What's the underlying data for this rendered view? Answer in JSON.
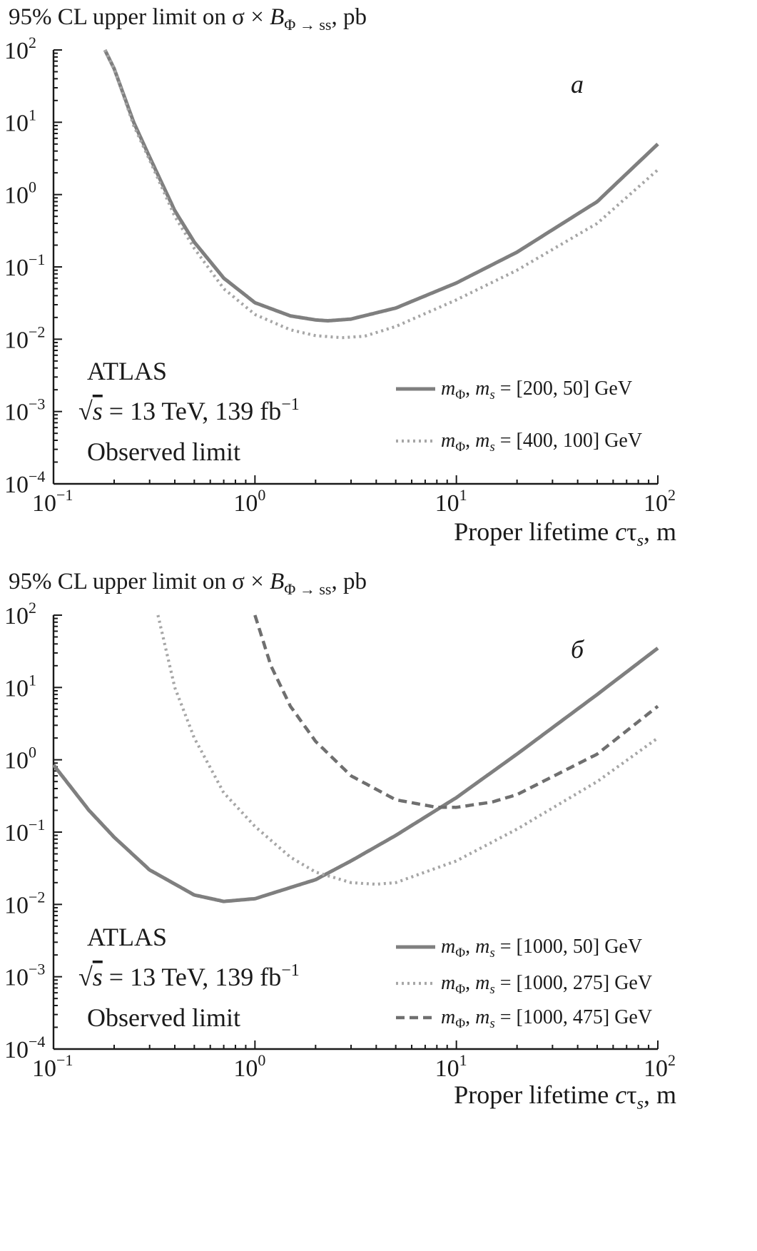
{
  "chart_data": [
    {
      "type": "line",
      "panel_label": "a",
      "title": "95% CL upper limit on σ × BΦ → ss, pb",
      "title_parts": {
        "pre": "95% CL upper limit on σ × ",
        "B": "B",
        "sub": "Φ → ss",
        "post": ", pb"
      },
      "xlabel": "Proper lifetime cτs, m",
      "xlabel_parts": {
        "pre": "Proper lifetime ",
        "c": "c",
        "tau": "τ",
        "sub": "s",
        "post": ", m"
      },
      "xscale": "log",
      "yscale": "log",
      "xlim": [
        0.1,
        100
      ],
      "ylim": [
        0.0001,
        100
      ],
      "x_ticks": [
        {
          "base": "10",
          "exp": "−1"
        },
        {
          "base": "10",
          "exp": "0"
        },
        {
          "base": "10",
          "exp": "1"
        },
        {
          "base": "10",
          "exp": "2"
        }
      ],
      "y_ticks": [
        {
          "base": "10",
          "exp": "−4"
        },
        {
          "base": "10",
          "exp": "−3"
        },
        {
          "base": "10",
          "exp": "−2"
        },
        {
          "base": "10",
          "exp": "−1"
        },
        {
          "base": "10",
          "exp": "0"
        },
        {
          "base": "10",
          "exp": "1"
        },
        {
          "base": "10",
          "exp": "2"
        }
      ],
      "annotation": {
        "experiment": "ATLAS",
        "energy_pre": "s",
        "energy_post": " = 13 TeV, 139 fb",
        "energy_sup": "−1",
        "note": "Observed limit"
      },
      "series": [
        {
          "name": "mΦ, ms = [200, 50] GeV",
          "label_prefix": "m",
          "label_sub1": "Φ",
          "label_mid": ", m",
          "label_sub2": "s",
          "label_rest": " = [200, 50] GeV",
          "style": "solid",
          "color": "#7f7f7f",
          "x": [
            0.18,
            0.2,
            0.25,
            0.3,
            0.4,
            0.5,
            0.7,
            1.0,
            1.5,
            2.0,
            2.3,
            3.0,
            5.0,
            10,
            20,
            50,
            100
          ],
          "y": [
            100,
            55,
            10,
            3.3,
            0.6,
            0.22,
            0.07,
            0.032,
            0.021,
            0.0185,
            0.018,
            0.019,
            0.027,
            0.06,
            0.16,
            0.8,
            5
          ]
        },
        {
          "name": "mΦ, ms = [400, 100] GeV",
          "label_prefix": "m",
          "label_sub1": "Φ",
          "label_mid": ", m",
          "label_sub2": "s",
          "label_rest": " = [400, 100] GeV",
          "style": "dotted",
          "color": "#a6a6a6",
          "x": [
            0.18,
            0.2,
            0.25,
            0.3,
            0.4,
            0.5,
            0.7,
            1.0,
            1.5,
            2.0,
            2.7,
            3.5,
            5.0,
            10,
            20,
            50,
            100
          ],
          "y": [
            100,
            55,
            9,
            3.0,
            0.5,
            0.18,
            0.05,
            0.022,
            0.0135,
            0.0112,
            0.0105,
            0.011,
            0.015,
            0.035,
            0.09,
            0.4,
            2.2
          ]
        }
      ]
    },
    {
      "type": "line",
      "panel_label": "б",
      "title": "95% CL upper limit on σ × BΦ → ss, pb",
      "title_parts": {
        "pre": "95% CL upper limit on σ × ",
        "B": "B",
        "sub": "Φ → ss",
        "post": ", pb"
      },
      "xlabel": "Proper lifetime cτs, m",
      "xlabel_parts": {
        "pre": "Proper lifetime ",
        "c": "c",
        "tau": "τ",
        "sub": "s",
        "post": ", m"
      },
      "xscale": "log",
      "yscale": "log",
      "xlim": [
        0.1,
        100
      ],
      "ylim": [
        0.0001,
        100
      ],
      "x_ticks": [
        {
          "base": "10",
          "exp": "−1"
        },
        {
          "base": "10",
          "exp": "0"
        },
        {
          "base": "10",
          "exp": "1"
        },
        {
          "base": "10",
          "exp": "2"
        }
      ],
      "y_ticks": [
        {
          "base": "10",
          "exp": "−4"
        },
        {
          "base": "10",
          "exp": "−3"
        },
        {
          "base": "10",
          "exp": "−2"
        },
        {
          "base": "10",
          "exp": "−1"
        },
        {
          "base": "10",
          "exp": "0"
        },
        {
          "base": "10",
          "exp": "1"
        },
        {
          "base": "10",
          "exp": "2"
        }
      ],
      "annotation": {
        "experiment": "ATLAS",
        "energy_pre": "s",
        "energy_post": " = 13 TeV, 139 fb",
        "energy_sup": "−1",
        "note": "Observed limit"
      },
      "series": [
        {
          "name": "mΦ, ms = [1000, 50] GeV",
          "label_prefix": "m",
          "label_sub1": "Φ",
          "label_mid": ", m",
          "label_sub2": "s",
          "label_rest": " = [1000, 50] GeV",
          "style": "solid",
          "color": "#7f7f7f",
          "x": [
            0.1,
            0.15,
            0.2,
            0.3,
            0.5,
            0.7,
            1.0,
            2.0,
            3.0,
            5.0,
            10,
            20,
            50,
            100
          ],
          "y": [
            0.85,
            0.2,
            0.085,
            0.03,
            0.0135,
            0.011,
            0.012,
            0.022,
            0.04,
            0.09,
            0.3,
            1.2,
            8,
            35
          ]
        },
        {
          "name": "mΦ, ms = [1000, 275] GeV",
          "label_prefix": "m",
          "label_sub1": "Φ",
          "label_mid": ", m",
          "label_sub2": "s",
          "label_rest": " = [1000, 275] GeV",
          "style": "dotted",
          "color": "#a6a6a6",
          "x": [
            0.33,
            0.4,
            0.5,
            0.7,
            1.0,
            1.5,
            2.0,
            3.0,
            4.0,
            5.0,
            10,
            20,
            50,
            100
          ],
          "y": [
            100,
            10,
            2.0,
            0.35,
            0.12,
            0.045,
            0.028,
            0.02,
            0.019,
            0.02,
            0.04,
            0.11,
            0.5,
            2.0
          ]
        },
        {
          "name": "mΦ, ms = [1000, 475] GeV",
          "label_prefix": "m",
          "label_sub1": "Φ",
          "label_mid": ", m",
          "label_sub2": "s",
          "label_rest": " = [1000, 475] GeV",
          "style": "dashed",
          "color": "#6f6f6f",
          "x": [
            1.0,
            1.2,
            1.5,
            2.0,
            3.0,
            5.0,
            8.0,
            10,
            15,
            20,
            50,
            100
          ],
          "y": [
            100,
            20,
            5.5,
            1.8,
            0.6,
            0.28,
            0.22,
            0.22,
            0.26,
            0.33,
            1.2,
            5.5
          ]
        }
      ]
    }
  ]
}
